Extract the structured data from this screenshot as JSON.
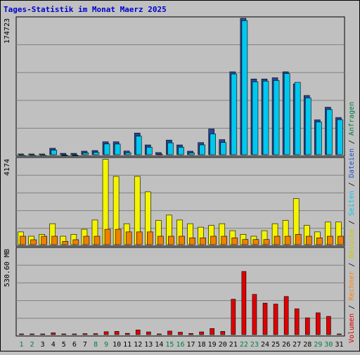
{
  "chart_data": {
    "type": "bar",
    "title": "Tages-Statistik im Monat Maerz 2025",
    "x": [
      "1",
      "2",
      "3",
      "4",
      "5",
      "6",
      "7",
      "8",
      "9",
      "10",
      "11",
      "12",
      "13",
      "14",
      "15",
      "16",
      "17",
      "18",
      "19",
      "20",
      "21",
      "22",
      "23",
      "24",
      "25",
      "26",
      "27",
      "28",
      "29",
      "30",
      "31"
    ],
    "weekend_days": [
      "1",
      "2",
      "8",
      "9",
      "15",
      "16",
      "22",
      "23",
      "29",
      "30"
    ],
    "panels": {
      "top": {
        "ylabel": "174723",
        "ymax": 174723,
        "series": [
          {
            "name": "Anfragen",
            "color": "#29469a",
            "values": [
              700,
              700,
              700,
              8200,
              1700,
              1700,
              4500,
              5300,
              16500,
              16500,
              4700,
              27700,
              12500,
              2700,
              18700,
              12500,
              4500,
              15500,
              32900,
              19300,
              106200,
              174700,
              97000,
              97000,
              98500,
              106200,
              90700,
              75800,
              44600,
              60800,
              47600
            ]
          },
          {
            "name": "Dateien",
            "color": "#00c8ee",
            "values": [
              650,
              650,
              650,
              7600,
              1400,
              1400,
              4000,
              4700,
              15500,
              15400,
              4200,
              25500,
              11300,
              2300,
              17000,
              11300,
              4000,
              14400,
              28400,
              17400,
              105200,
              173500,
              95200,
              96000,
              96800,
              105700,
              94500,
              74600,
              43700,
              59600,
              46700
            ]
          }
        ]
      },
      "middle": {
        "ylabel": "4174",
        "ymax": 4174,
        "series": [
          {
            "name": "Seiten",
            "color": "#f08000",
            "values": [
              410,
              240,
              410,
              410,
              160,
              240,
              410,
              410,
              750,
              750,
              620,
              620,
              620,
              410,
              410,
              410,
              330,
              330,
              410,
              410,
              330,
              250,
              250,
              250,
              410,
              410,
              500,
              410,
              330,
              410,
              410
            ]
          },
          {
            "name": "Besuche",
            "color": "#f4f400",
            "values": [
              620,
              410,
              500,
              1020,
              410,
              500,
              750,
              1200,
              4150,
              3320,
              1020,
              3320,
              2570,
              1180,
              1440,
              1200,
              1020,
              850,
              940,
              1020,
              680,
              500,
              410,
              680,
              1020,
              1180,
              2240,
              940,
              620,
              1100,
              1100
            ]
          }
        ]
      },
      "bottom": {
        "ylabel": "530.60 MB",
        "ymax": 530.6,
        "series": [
          {
            "name": "Volumen",
            "color": "#e00000",
            "values": [
              2,
              2,
              2,
              11,
              2,
              2,
              6,
              6,
              18,
              20,
              8,
              29,
              17,
              4,
              22,
              15,
              7,
              17,
              38,
              20,
              219,
              391,
              249,
              195,
              189,
              236,
              160,
              104,
              135,
              113,
              1
            ]
          }
        ]
      },
      "kbyte": {
        "name": "Rechner",
        "color": "#ff8000"
      }
    },
    "legend_sep": "/"
  }
}
